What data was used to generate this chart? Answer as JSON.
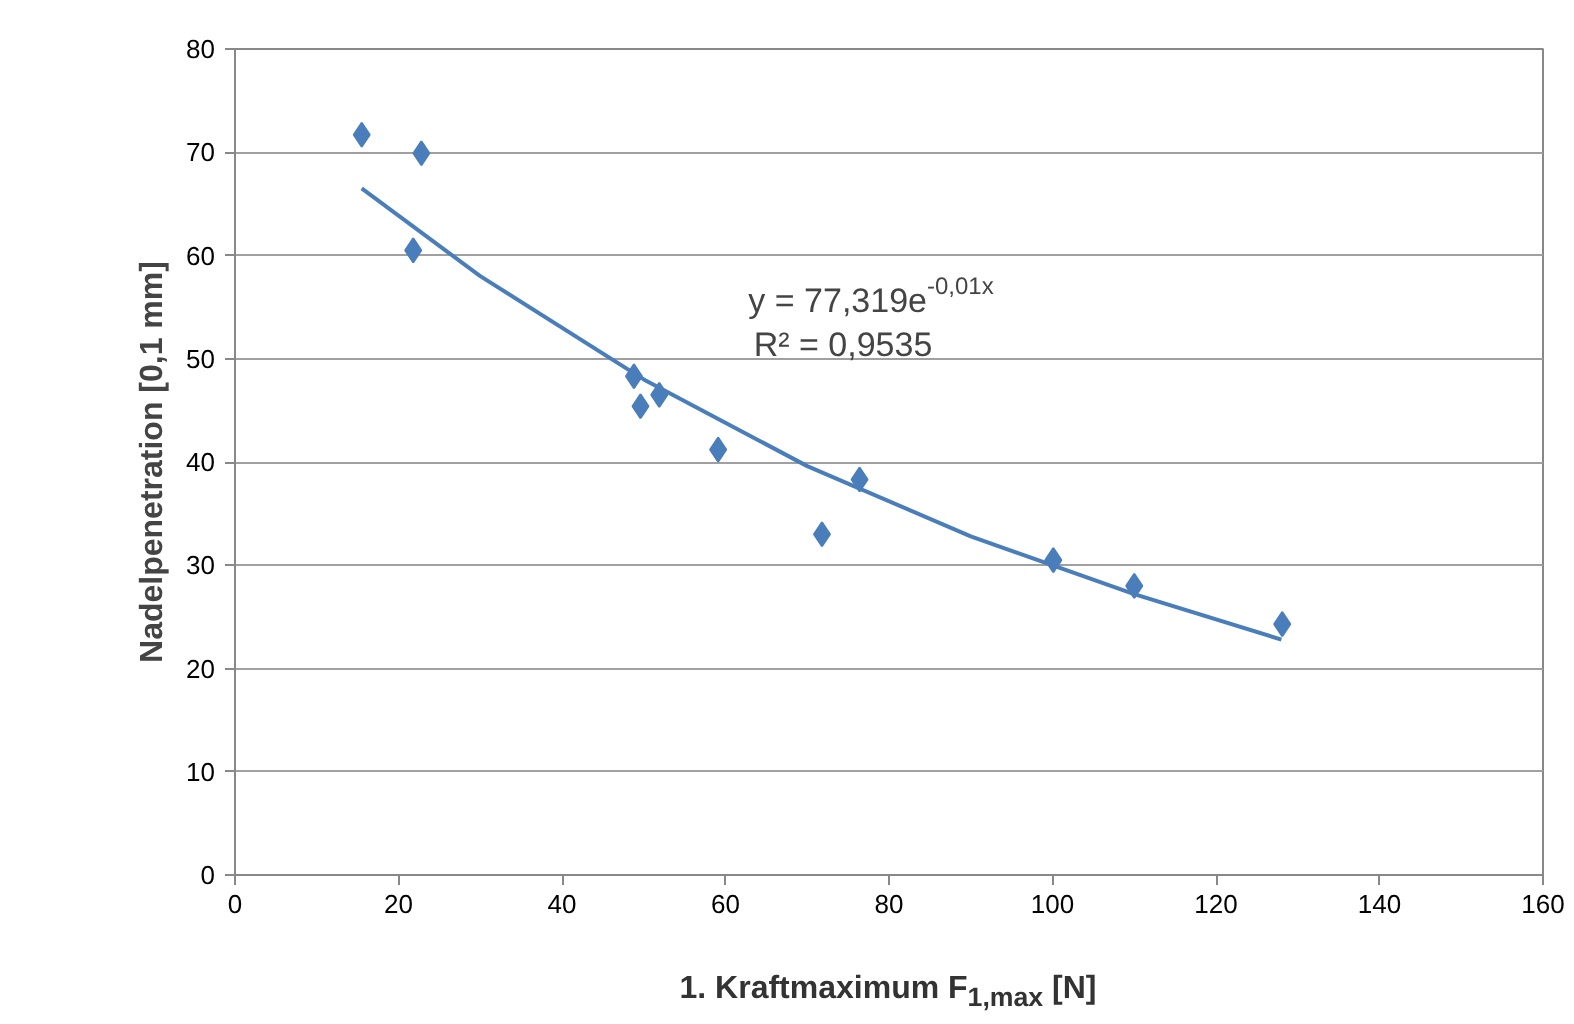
{
  "chart_data": {
    "type": "scatter",
    "xlabel": "1. Kraftmaximum F$_{1,max}$ [N]",
    "ylabel": "Nadelpenetration [0,1 mm]",
    "xlim": [
      0,
      160
    ],
    "xticks": [
      0,
      20,
      40,
      60,
      80,
      100,
      120,
      140,
      160
    ],
    "ylim": [
      0,
      80
    ],
    "yticks": [
      0,
      10,
      20,
      30,
      40,
      50,
      60,
      70,
      80
    ],
    "grid": "y",
    "marker": "diamond",
    "series": [
      {
        "color": "#4a7ebb",
        "x": [
          15.5,
          22.8,
          21.8,
          48.8,
          49.6,
          51.9,
          59.1,
          71.8,
          76.4,
          100.1,
          110.0,
          128.1
        ],
        "values": [
          71.7,
          69.9,
          60.5,
          48.3,
          45.4,
          46.5,
          41.2,
          33.0,
          38.3,
          30.5,
          28.0,
          24.3
        ]
      },
      {
        "type": "line",
        "marker": "none",
        "color": "#4a7ebb",
        "x": [
          15.5,
          30,
          50,
          70,
          90,
          110,
          128
        ],
        "values": [
          66.5,
          58.0,
          48.0,
          39.6,
          32.8,
          27.2,
          22.8
        ]
      }
    ],
    "annotations": [
      "y = 77,319e$^{-0,01x}$",
      "R² = 0,9535"
    ]
  }
}
